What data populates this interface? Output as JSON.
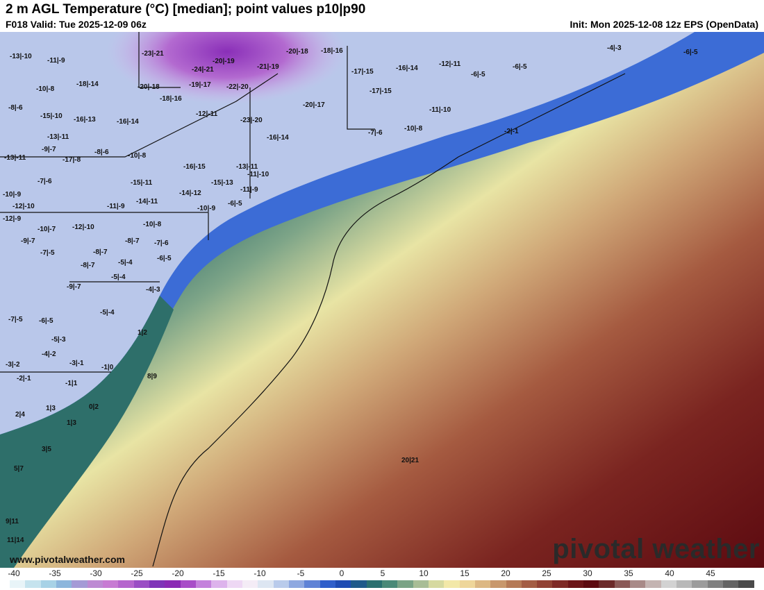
{
  "header": {
    "title": "2 m AGL Temperature (°C) [median]; point values p10|p90",
    "valid": "F018 Valid: Tue 2025-12-09 06z",
    "init": "Init: Mon 2025-12-08 12z EPS (OpenData)"
  },
  "watermark": {
    "url": "www.pivotalweather.com",
    "brand": "pivotal weather"
  },
  "colorbar": {
    "ticks": [
      "-40",
      "-35",
      "-30",
      "-25",
      "-20",
      "-15",
      "-10",
      "-5",
      "0",
      "5",
      "10",
      "15",
      "20",
      "25",
      "30",
      "35",
      "40",
      "45"
    ],
    "colors": [
      "#e8f4f8",
      "#c5e3ee",
      "#a7d2e6",
      "#8cb6dc",
      "#a49ad6",
      "#bd8ad3",
      "#c77bd3",
      "#b565cd",
      "#9a4ec4",
      "#7f34b8",
      "#8a2ab4",
      "#a84ec8",
      "#c482dc",
      "#ddb3ec",
      "#eed8f4",
      "#f4ecf6",
      "#dde6f2",
      "#b9cbeb",
      "#8ea8e0",
      "#5f83d6",
      "#2f5fca",
      "#1e4cb3",
      "#1e5a8a",
      "#2a7070",
      "#4a8a78",
      "#7aa386",
      "#a8bd96",
      "#d6d9a0",
      "#f2e8a8",
      "#eed69a",
      "#dcb884",
      "#c8986c",
      "#b57a56",
      "#a35d44",
      "#914234",
      "#7e2a26",
      "#6b1518",
      "#5c0a10",
      "#6b2a2a",
      "#8a5a58",
      "#a88a88",
      "#c4b4b2",
      "#d2d2d2",
      "#b8b8b8",
      "#9c9c9c",
      "#808080",
      "#646464",
      "#4a4a4a"
    ]
  },
  "point_values": [
    "-13|-10",
    "-11|-9",
    "-23|-21",
    "-20|-18",
    "-18|-16",
    "-4|-3",
    "-6|-5",
    "-10|-8",
    "-18|-14",
    "-20|-18",
    "-24|-21",
    "-20|-19",
    "-21|-19",
    "-17|-15",
    "-16|-14",
    "-12|-11",
    "-6|-5",
    "-6|-5",
    "-8|-6",
    "-15|-10",
    "-16|-13",
    "-18|-16",
    "-19|-17",
    "-22|-20",
    "-17|-15",
    "-11|-10",
    "-16|-14",
    "-12|-11",
    "-20|-17",
    "-23|-20",
    "-7|-6",
    "-10|-8",
    "-2|-1",
    "-13|-11",
    "-9|-7",
    "-8|-6",
    "-10|-8",
    "-16|-14",
    "-13|-11",
    "-17|-8",
    "-16|-15",
    "-11|-10",
    "-7|-6",
    "-15|-11",
    "-15|-13",
    "-11|-9",
    "-13|-11",
    "-10|-9",
    "-14|-12",
    "-12|-10",
    "-11|-9",
    "-14|-11",
    "-10|-9",
    "-6|-5",
    "-12|-9",
    "-10|-7",
    "-12|-10",
    "-10|-8",
    "-8|-7",
    "-9|-7",
    "-7|-6",
    "-7|-5",
    "-8|-7",
    "-8|-7",
    "-5|-4",
    "-6|-5",
    "-5|-4",
    "-9|-7",
    "-4|-3",
    "-7|-5",
    "-6|-5",
    "-5|-4",
    "1|2",
    "-5|-3",
    "-4|-2",
    "-3|-2",
    "-3|-1",
    "-1|0",
    "8|9",
    "-2|-1",
    "-1|1",
    "0|2",
    "1|3",
    "2|4",
    "1|3",
    "3|5",
    "5|7",
    "20|21",
    "9|11",
    "11|14"
  ]
}
